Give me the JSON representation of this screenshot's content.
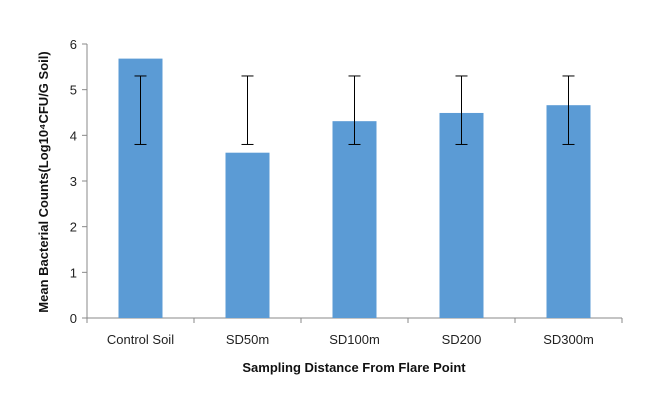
{
  "chart_data": {
    "type": "bar",
    "title": "",
    "xlabel": "Sampling Distance From Flare Point",
    "ylabel": "Mean Bacterial Counts(Log10⁴CFU/G Soil)",
    "categories": [
      "Control Soil",
      "SD50m",
      "SD100m",
      "SD200",
      "SD300m"
    ],
    "values": [
      5.68,
      3.62,
      4.31,
      4.49,
      4.66
    ],
    "error_bars": [
      {
        "low": 3.8,
        "high": 5.3
      },
      {
        "low": 3.8,
        "high": 5.3
      },
      {
        "low": 3.8,
        "high": 5.3
      },
      {
        "low": 3.8,
        "high": 5.3
      },
      {
        "low": 3.8,
        "high": 5.3
      }
    ],
    "ylim": [
      0,
      6
    ],
    "yticks": [
      0,
      1,
      2,
      3,
      4,
      5,
      6
    ],
    "grid": false,
    "legend": "none",
    "colors": {
      "bar": "#5b9bd5",
      "axis": "#888888",
      "error": "#000000"
    }
  }
}
